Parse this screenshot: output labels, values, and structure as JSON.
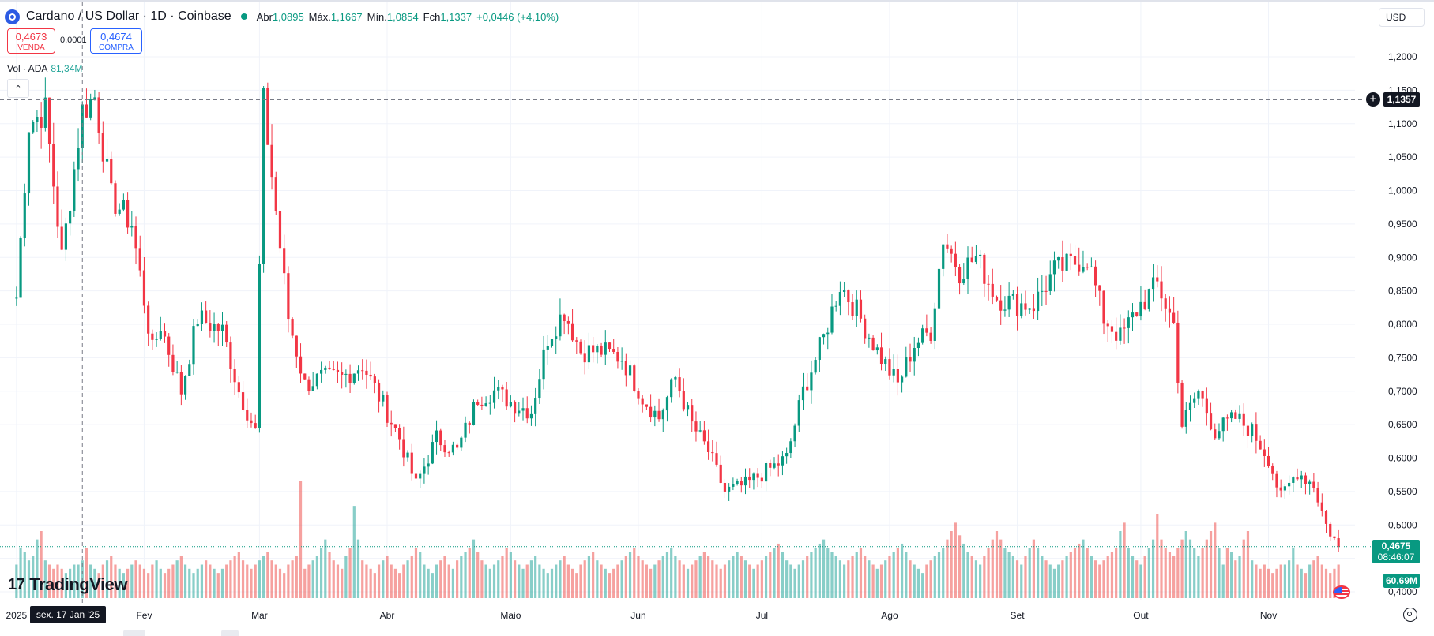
{
  "header": {
    "title": "Cardano / US Dollar · 1D · Coinbase",
    "ohlc": [
      {
        "key": "Abr",
        "value": "1,0895"
      },
      {
        "key": "Máx.",
        "value": "1,1667"
      },
      {
        "key": "Mín.",
        "value": "1,0854"
      },
      {
        "key": "Fch",
        "value": "1,1337"
      }
    ],
    "change": "+0,0446 (+4,10%)"
  },
  "trade": {
    "sell_price": "0,4673",
    "sell_label": "VENDA",
    "spread": "0,0001",
    "buy_price": "0,4674",
    "buy_label": "COMPRA"
  },
  "volume_legend": {
    "label": "Vol · ADA",
    "value": "81,34M"
  },
  "currency": "USD",
  "crosshair": {
    "price_label": "1,1357",
    "date_label": "sex. 17 Jan '25"
  },
  "last_price": {
    "price": "0,4675",
    "countdown": "08:46:07"
  },
  "last_volume": "60,69M",
  "branding": "TradingView",
  "icons": [
    "cardano-logo-icon",
    "collapse-chevron-icon",
    "crosshair-plus-icon",
    "us-flag-icon",
    "settings-icon",
    "tradingview-logo-icon"
  ],
  "colors": {
    "up": "#089981",
    "down": "#f23645",
    "vol_up": "#26a69a",
    "vol_down": "#ef5350"
  },
  "chart_data": {
    "type": "candlestick",
    "title": "Cardano / US Dollar · 1D · Coinbase",
    "xlabel": "",
    "ylabel": "",
    "x_ticks": [
      "2025",
      "Fev",
      "Mar",
      "Abr",
      "Maio",
      "Jun",
      "Jul",
      "Ago",
      "Set",
      "Out",
      "Nov"
    ],
    "y_ticks": [
      "1,2000",
      "1,1500",
      "1,1000",
      "1,0500",
      "1,0000",
      "0,9500",
      "0,9000",
      "0,8500",
      "0,8000",
      "0,7500",
      "0,7000",
      "0,6500",
      "0,6000",
      "0,5500",
      "0,5000",
      "0,4500",
      "0,4000"
    ],
    "ylim": [
      0.4,
      1.2
    ],
    "grid": true,
    "series": [
      {
        "name": "ADA",
        "close_points": [
          [
            "2025-01-01",
            0.84
          ],
          [
            "2025-01-04",
            1.1
          ],
          [
            "2025-01-08",
            1.12
          ],
          [
            "2025-01-12",
            0.9
          ],
          [
            "2025-01-17",
            1.12
          ],
          [
            "2025-01-20",
            1.14
          ],
          [
            "2025-01-24",
            0.99
          ],
          [
            "2025-01-29",
            0.95
          ],
          [
            "2025-02-03",
            0.76
          ],
          [
            "2025-02-05",
            0.8
          ],
          [
            "2025-02-10",
            0.7
          ],
          [
            "2025-02-14",
            0.81
          ],
          [
            "2025-02-20",
            0.79
          ],
          [
            "2025-02-24",
            0.7
          ],
          [
            "2025-02-28",
            0.64
          ],
          [
            "2025-03-02",
            1.13
          ],
          [
            "2025-03-05",
            0.97
          ],
          [
            "2025-03-08",
            0.81
          ],
          [
            "2025-03-12",
            0.71
          ],
          [
            "2025-03-16",
            0.72
          ],
          [
            "2025-03-21",
            0.72
          ],
          [
            "2025-03-26",
            0.74
          ],
          [
            "2025-03-31",
            0.68
          ],
          [
            "2025-04-04",
            0.63
          ],
          [
            "2025-04-08",
            0.56
          ],
          [
            "2025-04-13",
            0.63
          ],
          [
            "2025-04-18",
            0.61
          ],
          [
            "2025-04-23",
            0.69
          ],
          [
            "2025-04-27",
            0.7
          ],
          [
            "2025-05-02",
            0.68
          ],
          [
            "2025-05-06",
            0.67
          ],
          [
            "2025-05-10",
            0.78
          ],
          [
            "2025-05-14",
            0.82
          ],
          [
            "2025-05-18",
            0.76
          ],
          [
            "2025-05-23",
            0.76
          ],
          [
            "2025-05-28",
            0.75
          ],
          [
            "2025-06-02",
            0.69
          ],
          [
            "2025-06-06",
            0.66
          ],
          [
            "2025-06-10",
            0.72
          ],
          [
            "2025-06-14",
            0.65
          ],
          [
            "2025-06-18",
            0.61
          ],
          [
            "2025-06-22",
            0.55
          ],
          [
            "2025-06-27",
            0.56
          ],
          [
            "2025-07-02",
            0.58
          ],
          [
            "2025-07-07",
            0.6
          ],
          [
            "2025-07-11",
            0.7
          ],
          [
            "2025-07-16",
            0.78
          ],
          [
            "2025-07-20",
            0.86
          ],
          [
            "2025-07-24",
            0.82
          ],
          [
            "2025-07-29",
            0.76
          ],
          [
            "2025-08-03",
            0.71
          ],
          [
            "2025-08-07",
            0.77
          ],
          [
            "2025-08-11",
            0.79
          ],
          [
            "2025-08-14",
            0.93
          ],
          [
            "2025-08-18",
            0.88
          ],
          [
            "2025-08-22",
            0.9
          ],
          [
            "2025-08-27",
            0.84
          ],
          [
            "2025-09-01",
            0.83
          ],
          [
            "2025-09-05",
            0.83
          ],
          [
            "2025-09-10",
            0.88
          ],
          [
            "2025-09-14",
            0.89
          ],
          [
            "2025-09-18",
            0.9
          ],
          [
            "2025-09-22",
            0.81
          ],
          [
            "2025-09-26",
            0.78
          ],
          [
            "2025-10-01",
            0.83
          ],
          [
            "2025-10-05",
            0.86
          ],
          [
            "2025-10-09",
            0.8
          ],
          [
            "2025-10-11",
            0.65
          ],
          [
            "2025-10-15",
            0.7
          ],
          [
            "2025-10-19",
            0.64
          ],
          [
            "2025-10-24",
            0.66
          ],
          [
            "2025-10-28",
            0.64
          ],
          [
            "2025-11-01",
            0.6
          ],
          [
            "2025-11-04",
            0.54
          ],
          [
            "2025-11-08",
            0.58
          ],
          [
            "2025-11-12",
            0.56
          ],
          [
            "2025-11-15",
            0.5
          ],
          [
            "2025-11-18",
            0.4675
          ]
        ]
      }
    ],
    "volume_series": {
      "name": "Vol · ADA",
      "values_millions": [
        40,
        60,
        55,
        45,
        50,
        70,
        80,
        45,
        40,
        35,
        40,
        35,
        30,
        35,
        40,
        40,
        45,
        60,
        40,
        35,
        30,
        40,
        45,
        50,
        40,
        35,
        30,
        35,
        40,
        45,
        40,
        35,
        30,
        40,
        45,
        35,
        30,
        35,
        40,
        45,
        50,
        40,
        35,
        30,
        35,
        40,
        45,
        40,
        35,
        30,
        35,
        40,
        45,
        50,
        55,
        45,
        40,
        35,
        40,
        45,
        50,
        55,
        45,
        40,
        35,
        30,
        40,
        45,
        50,
        140,
        35,
        40,
        45,
        50,
        60,
        70,
        55,
        45,
        40,
        35,
        50,
        60,
        110,
        70,
        45,
        40,
        35,
        30,
        40,
        45,
        50,
        40,
        35,
        30,
        40,
        45,
        50,
        60,
        55,
        40,
        35,
        30,
        40,
        45,
        50,
        40,
        35,
        45,
        50,
        55,
        60,
        70,
        55,
        45,
        40,
        35,
        40,
        45,
        50,
        60,
        55,
        45,
        40,
        35,
        40,
        45,
        50,
        40,
        35,
        30,
        35,
        40,
        45,
        50,
        40,
        35,
        30,
        40,
        45,
        50,
        55,
        45,
        40,
        35,
        30,
        35,
        40,
        45,
        50,
        55,
        60,
        50,
        45,
        40,
        35,
        40,
        45,
        50,
        55,
        60,
        50,
        45,
        40,
        35,
        40,
        45,
        50,
        55,
        50,
        45,
        40,
        35,
        40,
        45,
        50,
        55,
        50,
        45,
        40,
        35,
        40,
        45,
        50,
        55,
        60,
        65,
        55,
        45,
        40,
        35,
        40,
        45,
        50,
        55,
        60,
        65,
        70,
        60,
        55,
        50,
        45,
        40,
        45,
        50,
        55,
        60,
        50,
        45,
        40,
        35,
        40,
        45,
        50,
        55,
        60,
        65,
        55,
        45,
        40,
        35,
        30,
        40,
        45,
        50,
        55,
        60,
        70,
        80,
        90,
        75,
        65,
        55,
        50,
        45,
        40,
        50,
        60,
        70,
        80,
        70,
        60,
        55,
        50,
        45,
        40,
        50,
        60,
        70,
        60,
        50,
        45,
        40,
        35,
        40,
        45,
        50,
        55,
        60,
        65,
        70,
        60,
        50,
        45,
        40,
        45,
        50,
        55,
        60,
        80,
        90,
        60,
        50,
        45,
        40,
        50,
        60,
        70,
        100,
        70,
        60,
        55,
        50,
        60,
        70,
        80,
        70,
        60,
        50,
        60,
        70,
        80,
        90,
        60
      ]
    }
  }
}
